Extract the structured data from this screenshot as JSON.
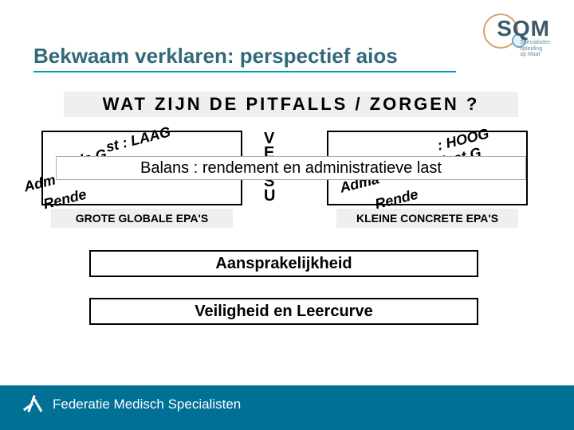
{
  "title": {
    "text": "Bekwaam verklaren: perspectief aios",
    "color": "#316978",
    "fontsize": 26,
    "underline_color": "#00a0b0"
  },
  "logo": {
    "text": "SQM",
    "subtitle": "Specialisten\nopleiding\nop Maat",
    "outer_circle_color": "#d9a06b",
    "inner_circle_color": "#6aa8c8"
  },
  "heading": {
    "text": "WAT ZIJN DE PITFALLS / ZORGEN ?",
    "bg": "#efefef",
    "fontsize": 22
  },
  "left_block": {
    "diag1": "st : LAAG",
    "diag2": "la   G",
    "diag3": "Adm",
    "diag4": "Rende"
  },
  "right_block": {
    "diag1": ": HOOG",
    "diag2": "last    G",
    "diag3": "Adma",
    "diag4": "Rende"
  },
  "versus": [
    "V",
    "E",
    "R",
    "S",
    "U"
  ],
  "balance_bar": "Balans : rendement en administratieve last",
  "caption_left": "GROTE GLOBALE EPA'S",
  "caption_right": "KLEINE CONCRETE EPA'S",
  "wide_box_1": "Aansprakelijkheid",
  "wide_box_2": "Veiligheid en Leercurve",
  "footer": {
    "text": "Federatie Medisch Specialisten",
    "bg": "#007094",
    "text_color": "#ffffff"
  },
  "colors": {
    "page_bg": "#ffffff",
    "box_border": "#000000",
    "caption_bg": "#efefef"
  }
}
